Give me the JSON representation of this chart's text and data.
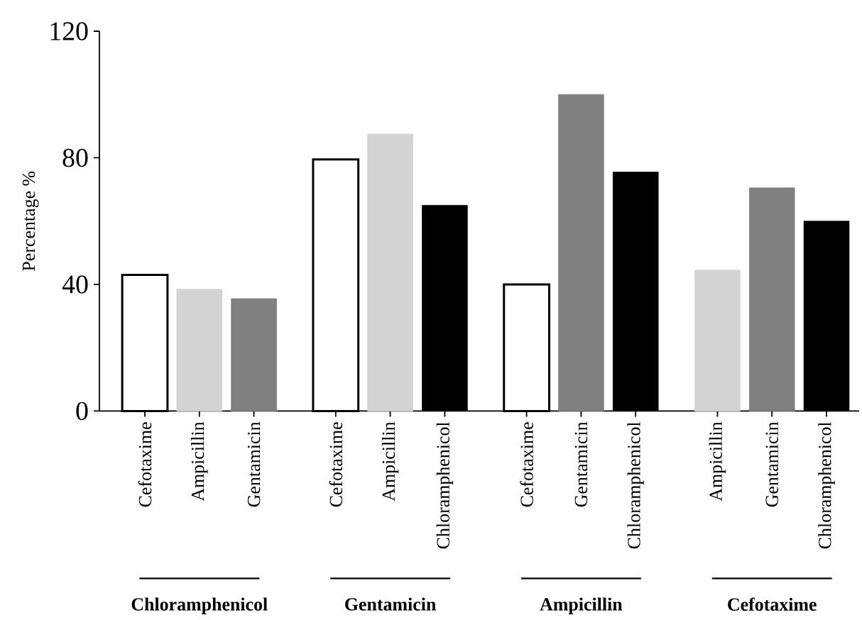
{
  "chart_data": {
    "type": "bar",
    "ylabel": "Percentage %",
    "categories": [
      "Cefotaxime",
      "Ampicillin",
      "Gentamicin",
      null,
      "Cefotaxime",
      "Ampicillin",
      "Chloramphenicol",
      null,
      "Cefotaxime",
      "Gentamicin",
      "Chloramphenicol",
      null,
      "Ampicillin",
      "Gentamicin",
      "Chloramphenicol"
    ],
    "values": [
      43,
      38.5,
      35.5,
      null,
      79.5,
      87.5,
      65,
      null,
      40,
      100,
      75.5,
      null,
      44.5,
      70.5,
      60
    ],
    "colors": [
      "#ffffff",
      "#d3d3d3",
      "#808080",
      null,
      "#ffffff",
      "#d3d3d3",
      "#000000",
      null,
      "#ffffff",
      "#808080",
      "#000000",
      null,
      "#d3d3d3",
      "#808080",
      "#000000"
    ],
    "ylim": [
      0,
      120
    ],
    "yticks": [
      0,
      40,
      80,
      120
    ],
    "annotations": [
      "Chloramphenicol",
      "Gentamicin",
      "Ampicillin",
      "Cefotaxime"
    ]
  }
}
